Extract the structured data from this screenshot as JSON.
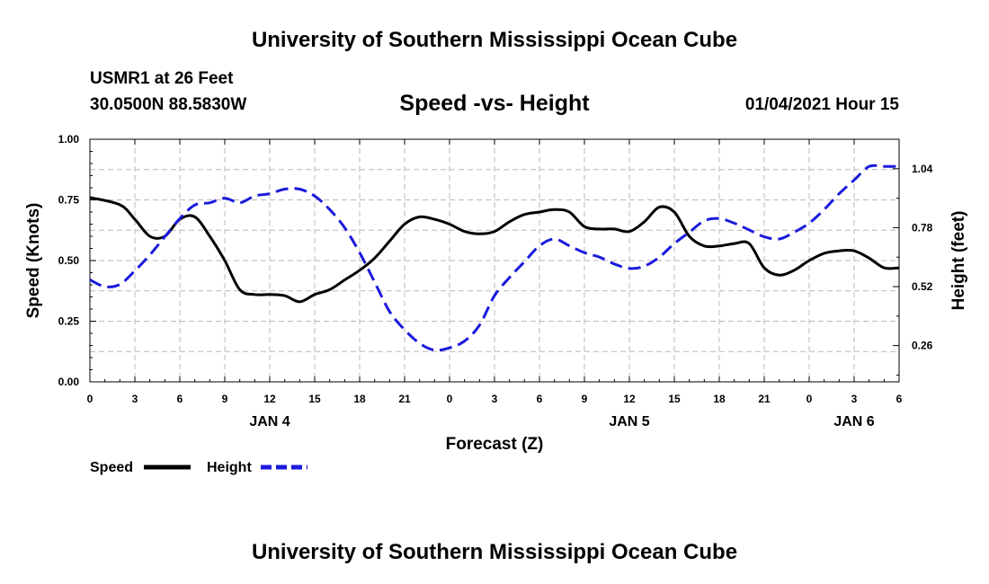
{
  "header": {
    "title": "University of Southern Mississippi Ocean Cube",
    "station": "USMR1 at 26 Feet",
    "coords": "30.0500N 88.5830W",
    "subtitle": "Speed -vs- Height",
    "datetime": "01/04/2021 Hour 15"
  },
  "footer": {
    "title": "University of Southern Mississippi Ocean Cube"
  },
  "legend": {
    "speed_label": "Speed",
    "height_label": "Height"
  },
  "colors": {
    "speed": "#000000",
    "height": "#1a1adc",
    "grid": "#b8b8b8"
  },
  "chart_data": {
    "type": "line",
    "title": "Speed -vs- Height",
    "xlabel": "Forecast (Z)",
    "ylabel_left": "Speed (Knots)",
    "ylabel_right": "Height (feet)",
    "xlim": [
      0,
      54
    ],
    "ylim_left": [
      0,
      1
    ],
    "ylim_right": [
      0.1,
      1.17
    ],
    "x_ticks": [
      0,
      3,
      6,
      9,
      12,
      15,
      18,
      21,
      24,
      27,
      30,
      33,
      36,
      39,
      42,
      45,
      48,
      51,
      54
    ],
    "x_tick_labels": [
      "0",
      "3",
      "6",
      "9",
      "12",
      "15",
      "18",
      "21",
      "0",
      "3",
      "6",
      "9",
      "12",
      "15",
      "18",
      "21",
      "0",
      "3",
      "6"
    ],
    "date_labels": [
      {
        "x": 12,
        "label": "JAN 4"
      },
      {
        "x": 36,
        "label": "JAN 5"
      },
      {
        "x": 51,
        "label": "JAN 6"
      }
    ],
    "y_left_ticks": [
      0,
      0.25,
      0.5,
      0.75,
      1.0
    ],
    "y_left_tick_labels": [
      "0.00",
      "0.25",
      "0.50",
      "0.75",
      "1.00"
    ],
    "y_right_ticks": [
      0.26,
      0.52,
      0.78,
      1.04
    ],
    "y_right_tick_labels": [
      "0.26",
      "0.52",
      "0.78",
      "1.04"
    ],
    "grid": true,
    "series": [
      {
        "name": "Speed",
        "axis": "left",
        "style": "solid",
        "x": [
          0,
          2,
          3,
          4,
          5,
          6,
          7,
          8,
          9,
          10,
          11,
          12,
          13,
          14,
          15,
          16,
          17,
          18,
          19,
          20,
          21,
          22,
          23,
          24,
          25,
          26,
          27,
          28,
          29,
          30,
          31,
          32,
          33,
          34,
          35,
          36,
          37,
          38,
          39,
          40,
          41,
          42,
          43,
          44,
          45,
          46,
          47,
          48,
          49,
          50,
          51,
          52,
          53,
          54
        ],
        "values": [
          0.76,
          0.73,
          0.67,
          0.6,
          0.6,
          0.67,
          0.68,
          0.6,
          0.5,
          0.38,
          0.36,
          0.36,
          0.355,
          0.33,
          0.36,
          0.38,
          0.42,
          0.46,
          0.51,
          0.58,
          0.65,
          0.68,
          0.67,
          0.65,
          0.62,
          0.61,
          0.62,
          0.66,
          0.69,
          0.7,
          0.71,
          0.7,
          0.64,
          0.63,
          0.63,
          0.62,
          0.66,
          0.72,
          0.7,
          0.6,
          0.56,
          0.56,
          0.57,
          0.57,
          0.47,
          0.44,
          0.46,
          0.5,
          0.53,
          0.54,
          0.54,
          0.51,
          0.47,
          0.47
        ]
      },
      {
        "name": "Height",
        "axis": "right",
        "style": "dashed",
        "x": [
          0,
          1,
          2,
          3,
          4,
          5,
          6,
          7,
          8,
          9,
          10,
          11,
          12,
          13,
          14,
          15,
          16,
          17,
          18,
          19,
          20,
          21,
          22,
          23,
          24,
          25,
          26,
          27,
          28,
          29,
          30,
          31,
          32,
          33,
          34,
          35,
          36,
          37,
          38,
          39,
          40,
          41,
          42,
          43,
          44,
          45,
          46,
          47,
          48,
          49,
          50,
          51,
          52,
          53,
          54
        ],
        "values": [
          0.55,
          0.52,
          0.53,
          0.59,
          0.66,
          0.74,
          0.82,
          0.88,
          0.89,
          0.91,
          0.89,
          0.92,
          0.93,
          0.95,
          0.95,
          0.92,
          0.86,
          0.78,
          0.67,
          0.54,
          0.41,
          0.33,
          0.27,
          0.24,
          0.25,
          0.28,
          0.35,
          0.48,
          0.56,
          0.63,
          0.7,
          0.73,
          0.7,
          0.67,
          0.65,
          0.62,
          0.6,
          0.61,
          0.65,
          0.71,
          0.76,
          0.81,
          0.82,
          0.8,
          0.77,
          0.74,
          0.73,
          0.76,
          0.8,
          0.86,
          0.93,
          0.99,
          1.05,
          1.05,
          1.05
        ]
      }
    ]
  }
}
